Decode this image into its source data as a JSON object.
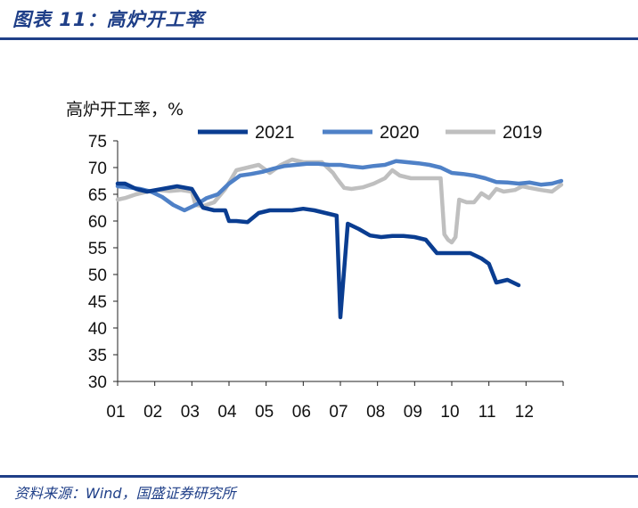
{
  "header": {
    "title": "图表 11：高炉开工率"
  },
  "footer": {
    "source": "资料来源：Wind，国盛证券研究所"
  },
  "chart_data": {
    "type": "line",
    "ylabel": "高炉开工率，%",
    "ylim": [
      30,
      75
    ],
    "yticks": [
      30,
      35,
      40,
      45,
      50,
      55,
      60,
      65,
      70,
      75
    ],
    "xlim": [
      1,
      13
    ],
    "xticks": [
      "01",
      "02",
      "03",
      "04",
      "05",
      "06",
      "07",
      "08",
      "09",
      "10",
      "11",
      "12"
    ],
    "legend_position": "top",
    "series": [
      {
        "name": "2021",
        "color": "#0a3d91",
        "x": [
          1.0,
          1.2,
          1.5,
          1.8,
          2.2,
          2.6,
          3.0,
          3.3,
          3.6,
          3.9,
          4.0,
          4.2,
          4.5,
          4.8,
          5.1,
          5.4,
          5.7,
          6.0,
          6.3,
          6.6,
          6.9,
          7.0,
          7.2,
          7.5,
          7.8,
          8.1,
          8.4,
          8.7,
          9.0,
          9.3,
          9.6,
          9.9,
          10.2,
          10.5,
          10.8,
          11.0,
          11.2,
          11.5,
          11.8
        ],
        "y": [
          67,
          67,
          66,
          65.5,
          66,
          66.5,
          66,
          62.5,
          62,
          62,
          60,
          60,
          59.8,
          61.5,
          62,
          62,
          62,
          62.3,
          62,
          61.5,
          61,
          42,
          59.5,
          58.5,
          57.3,
          57,
          57.2,
          57.2,
          57,
          56.5,
          54,
          54,
          54,
          54,
          53,
          52,
          48.5,
          49,
          48
        ]
      },
      {
        "name": "2020",
        "color": "#4f81c7",
        "x": [
          1.0,
          1.3,
          1.6,
          1.9,
          2.2,
          2.5,
          2.8,
          3.1,
          3.4,
          3.7,
          4.0,
          4.3,
          4.6,
          4.9,
          5.2,
          5.5,
          5.8,
          6.1,
          6.4,
          6.7,
          7.0,
          7.3,
          7.6,
          7.9,
          8.2,
          8.5,
          8.8,
          9.1,
          9.4,
          9.7,
          10.0,
          10.3,
          10.6,
          10.9,
          11.2,
          11.5,
          11.8,
          12.1,
          12.4,
          12.7,
          12.95
        ],
        "y": [
          66.5,
          66.3,
          66,
          65.5,
          64.5,
          63,
          62,
          63,
          64.3,
          65,
          67,
          68.5,
          68.8,
          69.2,
          69.8,
          70.3,
          70.5,
          70.7,
          70.7,
          70.5,
          70.5,
          70.2,
          70,
          70.3,
          70.5,
          71.2,
          71,
          70.8,
          70.5,
          70,
          69,
          68.8,
          68.5,
          68,
          67.3,
          67.2,
          67,
          67.2,
          66.8,
          67,
          67.5
        ]
      },
      {
        "name": "2019",
        "color": "#bfbfbf",
        "x": [
          1.0,
          1.2,
          1.5,
          1.8,
          2.1,
          2.4,
          2.7,
          3.0,
          3.1,
          3.3,
          3.6,
          3.9,
          4.2,
          4.5,
          4.8,
          5.1,
          5.4,
          5.7,
          6.0,
          6.3,
          6.5,
          6.8,
          6.9,
          7.1,
          7.3,
          7.6,
          7.9,
          8.2,
          8.4,
          8.6,
          8.9,
          9.2,
          9.5,
          9.7,
          9.8,
          9.9,
          10.0,
          10.1,
          10.2,
          10.4,
          10.6,
          10.8,
          11.0,
          11.2,
          11.4,
          11.7,
          11.9,
          12.1,
          12.4,
          12.7,
          12.95
        ],
        "y": [
          64,
          64.3,
          65,
          65.5,
          65.8,
          65.6,
          65.8,
          65.5,
          63,
          62.8,
          63.5,
          66,
          69.5,
          70,
          70.5,
          69,
          70.5,
          71.5,
          71,
          71,
          71,
          69,
          68,
          66.2,
          66,
          66.3,
          67,
          68,
          69.5,
          68.5,
          68,
          68,
          68,
          68,
          57.5,
          56.5,
          56,
          57,
          64,
          63.5,
          63.5,
          65.2,
          64.3,
          66,
          65.5,
          65.8,
          66.5,
          66.2,
          65.8,
          65.5,
          66.8
        ]
      }
    ]
  }
}
